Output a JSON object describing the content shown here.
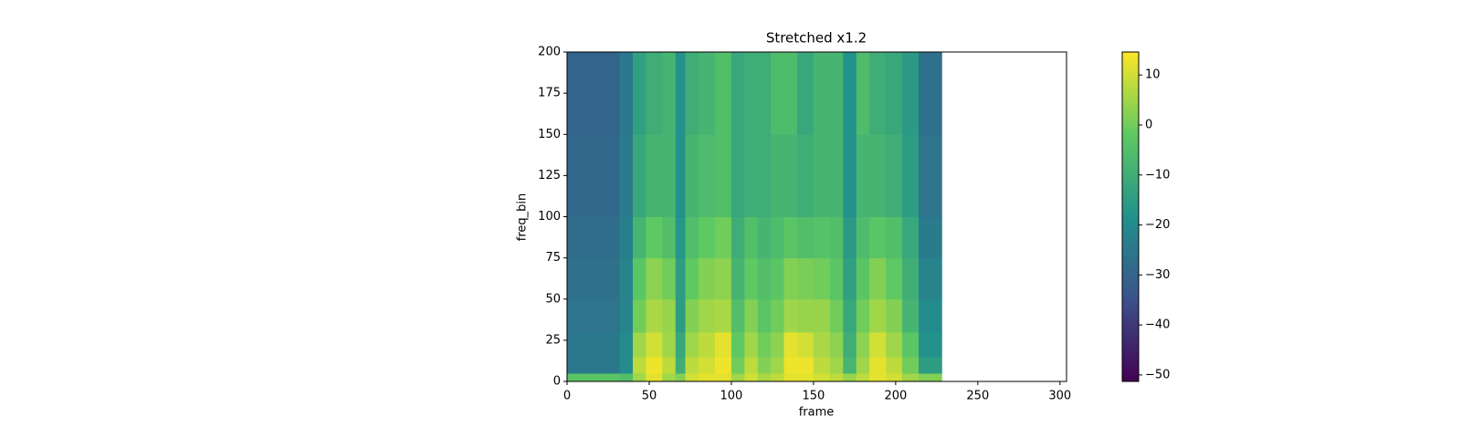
{
  "chart_data": {
    "type": "heatmap",
    "title": "Stretched x1.2",
    "xlabel": "frame",
    "ylabel": "freq_bin",
    "xlim": [
      0,
      304
    ],
    "ylim": [
      0,
      200
    ],
    "xticks": [
      0,
      50,
      100,
      150,
      200,
      250,
      300
    ],
    "yticks": [
      0,
      25,
      50,
      75,
      100,
      125,
      150,
      175,
      200
    ],
    "x_edges": [
      0,
      32,
      40,
      48,
      58,
      66,
      72,
      80,
      90,
      100,
      108,
      116,
      124,
      132,
      140,
      150,
      160,
      168,
      176,
      184,
      194,
      204,
      214,
      228
    ],
    "y_edges": [
      0,
      5,
      15,
      30,
      50,
      75,
      100,
      150,
      200
    ],
    "values": [
      [
        -3,
        -5,
        5,
        12,
        5,
        2,
        10,
        12,
        12,
        5,
        10,
        6,
        8,
        12,
        12,
        10,
        8,
        4,
        8,
        12,
        10,
        5,
        2
      ],
      [
        -25,
        -20,
        8,
        13,
        8,
        -10,
        8,
        10,
        13,
        0,
        8,
        2,
        5,
        13,
        13,
        8,
        5,
        -8,
        5,
        12,
        8,
        0,
        -15
      ],
      [
        -25,
        -20,
        5,
        10,
        5,
        -12,
        5,
        8,
        12,
        -2,
        5,
        0,
        3,
        12,
        10,
        6,
        3,
        -10,
        3,
        10,
        5,
        -3,
        -18
      ],
      [
        -26,
        -22,
        0,
        6,
        4,
        -15,
        2,
        5,
        6,
        -5,
        2,
        -3,
        0,
        5,
        4,
        4,
        0,
        -12,
        0,
        5,
        2,
        -8,
        -20
      ],
      [
        -27,
        -22,
        -3,
        3,
        0,
        -15,
        -2,
        2,
        3,
        -8,
        -2,
        -5,
        -3,
        2,
        1,
        0,
        -3,
        -14,
        -3,
        2,
        -2,
        -10,
        -22
      ],
      [
        -28,
        -23,
        -8,
        -2,
        -5,
        -17,
        -5,
        -2,
        0,
        -10,
        -5,
        -8,
        -6,
        -3,
        -5,
        -4,
        -5,
        -16,
        -6,
        -3,
        -5,
        -12,
        -24
      ],
      [
        -29,
        -24,
        -12,
        -8,
        -8,
        -18,
        -8,
        -6,
        -5,
        -12,
        -10,
        -10,
        -8,
        -8,
        -10,
        -8,
        -8,
        -18,
        -8,
        -8,
        -10,
        -15,
        -26
      ],
      [
        -30,
        -25,
        -14,
        -10,
        -8,
        -18,
        -10,
        -8,
        -5,
        -12,
        -10,
        -10,
        -6,
        -6,
        -12,
        -8,
        -8,
        -18,
        -6,
        -10,
        -12,
        -16,
        -27
      ]
    ],
    "colormap": "viridis",
    "clim": [
      -51.3,
      14.6
    ],
    "cticks": [
      {
        "value": -50,
        "label": "−50"
      },
      {
        "value": -40,
        "label": "−40"
      },
      {
        "value": -30,
        "label": "−30"
      },
      {
        "value": -20,
        "label": "−20"
      },
      {
        "value": -10,
        "label": "−10"
      },
      0,
      10
    ]
  }
}
